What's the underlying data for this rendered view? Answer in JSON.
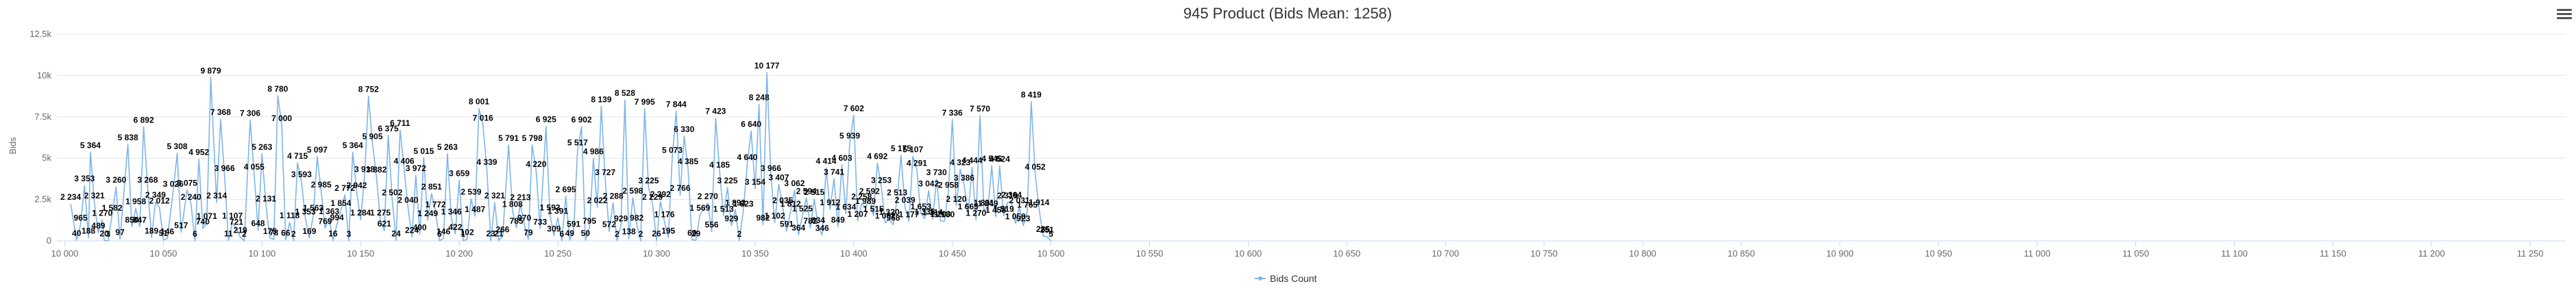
{
  "chart_data": {
    "type": "line",
    "title": "945 Product (Bids Mean: 1258)",
    "ylabel": "Bids",
    "xlabel": "",
    "ylim": [
      0,
      12500
    ],
    "xlim": [
      9996,
      11268
    ],
    "y_ticks": [
      0,
      2500,
      5000,
      7500,
      10000,
      12500
    ],
    "y_tick_labels": [
      "0",
      "2.5k",
      "5k",
      "7.5k",
      "10k",
      "12.5k"
    ],
    "x_ticks": [
      10000,
      10050,
      10100,
      10150,
      10200,
      10250,
      10300,
      10350,
      10400,
      10450,
      10500,
      10550,
      10600,
      10650,
      10700,
      10750,
      10800,
      10850,
      10900,
      10950,
      11000,
      11050,
      11100,
      11150,
      11200,
      11250
    ],
    "x_tick_labels": [
      "10 000",
      "10 050",
      "10 100",
      "10 150",
      "10 200",
      "10 250",
      "10 300",
      "10 350",
      "10 400",
      "10 450",
      "10 500",
      "10 550",
      "10 600",
      "10 650",
      "10 700",
      "10 750",
      "10 800",
      "10 850",
      "10 900",
      "10 950",
      "11 000",
      "11 050",
      "11 100",
      "11 150",
      "11 200",
      "11 250"
    ],
    "grid": true,
    "legend_position": "bottom-center",
    "color": "#7cb5ec",
    "series": [
      {
        "name": "Bids Count",
        "points": [
          [
            10003,
            2234
          ],
          [
            10006,
            40
          ],
          [
            10008,
            965
          ],
          [
            10010,
            3353
          ],
          [
            10012,
            188
          ],
          [
            10013,
            5364
          ],
          [
            10015,
            2321
          ],
          [
            10017,
            489
          ],
          [
            10019,
            1270
          ],
          [
            10020,
            20
          ],
          [
            10022,
            3
          ],
          [
            10024,
            1582
          ],
          [
            10026,
            3260
          ],
          [
            10028,
            97
          ],
          [
            10032,
            5838
          ],
          [
            10034,
            850
          ],
          [
            10036,
            1958
          ],
          [
            10038,
            847
          ],
          [
            10040,
            6892
          ],
          [
            10042,
            3268
          ],
          [
            10044,
            189
          ],
          [
            10046,
            2349
          ],
          [
            10048,
            2012
          ],
          [
            10050,
            51
          ],
          [
            10052,
            146
          ],
          [
            10055,
            3026
          ],
          [
            10057,
            5308
          ],
          [
            10059,
            517
          ],
          [
            10062,
            3075
          ],
          [
            10064,
            2240
          ],
          [
            10066,
            6
          ],
          [
            10068,
            4952
          ],
          [
            10070,
            740
          ],
          [
            10072,
            1071
          ],
          [
            10074,
            9879
          ],
          [
            10077,
            2314
          ],
          [
            10079,
            7368
          ],
          [
            10081,
            3966
          ],
          [
            10083,
            11
          ],
          [
            10085,
            1107
          ],
          [
            10087,
            721
          ],
          [
            10089,
            219
          ],
          [
            10091,
            2
          ],
          [
            10094,
            7306
          ],
          [
            10096,
            4055
          ],
          [
            10098,
            648
          ],
          [
            10100,
            5263
          ],
          [
            10102,
            2131
          ],
          [
            10104,
            175
          ],
          [
            10106,
            78
          ],
          [
            10108,
            8780
          ],
          [
            10110,
            7000
          ],
          [
            10112,
            66
          ],
          [
            10114,
            1118
          ],
          [
            10116,
            2
          ],
          [
            10118,
            4715
          ],
          [
            10120,
            3593
          ],
          [
            10122,
            1353
          ],
          [
            10124,
            169
          ],
          [
            10126,
            1563
          ],
          [
            10128,
            5097
          ],
          [
            10130,
            2985
          ],
          [
            10132,
            769
          ],
          [
            10134,
            1363
          ],
          [
            10136,
            16
          ],
          [
            10138,
            994
          ],
          [
            10140,
            1854
          ],
          [
            10142,
            2772
          ],
          [
            10144,
            3
          ],
          [
            10146,
            5364
          ],
          [
            10148,
            2942
          ],
          [
            10150,
            1284
          ],
          [
            10152,
            3918
          ],
          [
            10154,
            8752
          ],
          [
            10156,
            5905
          ],
          [
            10158,
            3882
          ],
          [
            10160,
            1275
          ],
          [
            10162,
            621
          ],
          [
            10164,
            6375
          ],
          [
            10166,
            2502
          ],
          [
            10168,
            24
          ],
          [
            10170,
            6711
          ],
          [
            10172,
            4406
          ],
          [
            10174,
            2040
          ],
          [
            10176,
            224
          ],
          [
            10178,
            3972
          ],
          [
            10180,
            400
          ],
          [
            10182,
            5015
          ],
          [
            10184,
            1249
          ],
          [
            10186,
            2851
          ],
          [
            10188,
            1772
          ],
          [
            10190,
            6
          ],
          [
            10192,
            146
          ],
          [
            10194,
            5263
          ],
          [
            10196,
            1346
          ],
          [
            10198,
            422
          ],
          [
            10200,
            3659
          ],
          [
            10202,
            1
          ],
          [
            10204,
            102
          ],
          [
            10206,
            2539
          ],
          [
            10208,
            1487
          ],
          [
            10210,
            8001
          ],
          [
            10212,
            7016
          ],
          [
            10214,
            4339
          ],
          [
            10216,
            23
          ],
          [
            10218,
            2321
          ],
          [
            10220,
            21
          ],
          [
            10222,
            266
          ],
          [
            10225,
            5791
          ],
          [
            10227,
            1808
          ],
          [
            10229,
            785
          ],
          [
            10231,
            2213
          ],
          [
            10233,
            970
          ],
          [
            10235,
            79
          ],
          [
            10237,
            5798
          ],
          [
            10239,
            4220
          ],
          [
            10241,
            733
          ],
          [
            10244,
            6925
          ],
          [
            10246,
            1593
          ],
          [
            10248,
            309
          ],
          [
            10250,
            1391
          ],
          [
            10252,
            6
          ],
          [
            10254,
            2695
          ],
          [
            10256,
            49
          ],
          [
            10258,
            591
          ],
          [
            10260,
            5517
          ],
          [
            10262,
            6902
          ],
          [
            10264,
            50
          ],
          [
            10266,
            795
          ],
          [
            10268,
            4986
          ],
          [
            10270,
            2022
          ],
          [
            10272,
            8139
          ],
          [
            10274,
            3727
          ],
          [
            10276,
            572
          ],
          [
            10278,
            2288
          ],
          [
            10280,
            2
          ],
          [
            10282,
            929
          ],
          [
            10284,
            8528
          ],
          [
            10286,
            138
          ],
          [
            10288,
            2598
          ],
          [
            10290,
            982
          ],
          [
            10292,
            2
          ],
          [
            10294,
            7995
          ],
          [
            10296,
            3225
          ],
          [
            10298,
            2229
          ],
          [
            10300,
            26
          ],
          [
            10302,
            2392
          ],
          [
            10304,
            1176
          ],
          [
            10306,
            195
          ],
          [
            10308,
            5073
          ],
          [
            10310,
            7844
          ],
          [
            10312,
            2766
          ],
          [
            10314,
            6330
          ],
          [
            10316,
            4385
          ],
          [
            10318,
            69
          ],
          [
            10320,
            29
          ],
          [
            10322,
            1569
          ],
          [
            10326,
            2270
          ],
          [
            10328,
            556
          ],
          [
            10330,
            7423
          ],
          [
            10332,
            4185
          ],
          [
            10334,
            1513
          ],
          [
            10336,
            3225
          ],
          [
            10338,
            929
          ],
          [
            10340,
            1893
          ],
          [
            10342,
            2
          ],
          [
            10344,
            1823
          ],
          [
            10346,
            4640
          ],
          [
            10348,
            6640
          ],
          [
            10350,
            3154
          ],
          [
            10352,
            8248
          ],
          [
            10354,
            982
          ],
          [
            10356,
            10177
          ],
          [
            10358,
            3966
          ],
          [
            10360,
            1102
          ],
          [
            10362,
            3407
          ],
          [
            10364,
            2035
          ],
          [
            10366,
            591
          ],
          [
            10368,
            1812
          ],
          [
            10370,
            3062
          ],
          [
            10372,
            364
          ],
          [
            10374,
            1525
          ],
          [
            10376,
            2594
          ],
          [
            10378,
            782
          ],
          [
            10380,
            2515
          ],
          [
            10382,
            834
          ],
          [
            10384,
            346
          ],
          [
            10386,
            4414
          ],
          [
            10388,
            1912
          ],
          [
            10390,
            3741
          ],
          [
            10392,
            849
          ],
          [
            10394,
            4603
          ],
          [
            10396,
            1634
          ],
          [
            10398,
            5939
          ],
          [
            10400,
            7602
          ],
          [
            10402,
            1207
          ],
          [
            10404,
            2258
          ],
          [
            10406,
            1989
          ],
          [
            10408,
            2592
          ],
          [
            10410,
            1515
          ],
          [
            10412,
            4692
          ],
          [
            10414,
            3253
          ],
          [
            10416,
            1092
          ],
          [
            10418,
            1320
          ],
          [
            10420,
            968
          ],
          [
            10422,
            2513
          ],
          [
            10424,
            5175
          ],
          [
            10426,
            2039
          ],
          [
            10428,
            1177
          ],
          [
            10430,
            5107
          ],
          [
            10432,
            4291
          ],
          [
            10434,
            1653
          ],
          [
            10436,
            1335
          ],
          [
            10438,
            3042
          ],
          [
            10440,
            1314
          ],
          [
            10442,
            3730
          ],
          [
            10444,
            1203
          ],
          [
            10446,
            1180
          ],
          [
            10448,
            2958
          ],
          [
            10450,
            7336
          ],
          [
            10452,
            2120
          ],
          [
            10454,
            4323
          ],
          [
            10456,
            3386
          ],
          [
            10458,
            1665
          ],
          [
            10460,
            4444
          ],
          [
            10462,
            1270
          ],
          [
            10464,
            7570
          ],
          [
            10466,
            1891
          ],
          [
            10468,
            1849
          ],
          [
            10470,
            4545
          ],
          [
            10472,
            1458
          ],
          [
            10474,
            4524
          ],
          [
            10476,
            1519
          ],
          [
            10478,
            2319
          ],
          [
            10480,
            2364
          ],
          [
            10482,
            1050
          ],
          [
            10484,
            2031
          ],
          [
            10486,
            923
          ],
          [
            10488,
            1765
          ],
          [
            10490,
            8419
          ],
          [
            10492,
            4052
          ],
          [
            10494,
            1914
          ],
          [
            10496,
            285
          ],
          [
            10498,
            251
          ],
          [
            10500,
            5
          ]
        ]
      }
    ]
  },
  "legend": {
    "label": "Bids Count"
  },
  "toolbar": {
    "menu_icon": "hamburger-menu-icon"
  }
}
